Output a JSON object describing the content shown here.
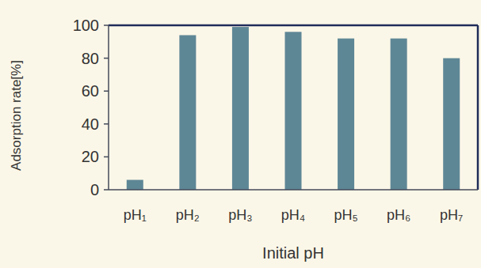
{
  "chart_data": {
    "type": "bar",
    "categories": [
      "pH₁",
      "pH₂",
      "pH₃",
      "pH₄",
      "pH₅",
      "pH₆",
      "pH₇"
    ],
    "values": [
      6,
      94,
      99,
      96,
      92,
      92,
      80
    ],
    "color": "#5e8796",
    "x_label": "Initial pH",
    "y_label": "Adsorption rate[%]",
    "ylim": [
      0,
      100
    ],
    "yticks": [
      0,
      20,
      40,
      60,
      80,
      100
    ],
    "grid": false
  }
}
